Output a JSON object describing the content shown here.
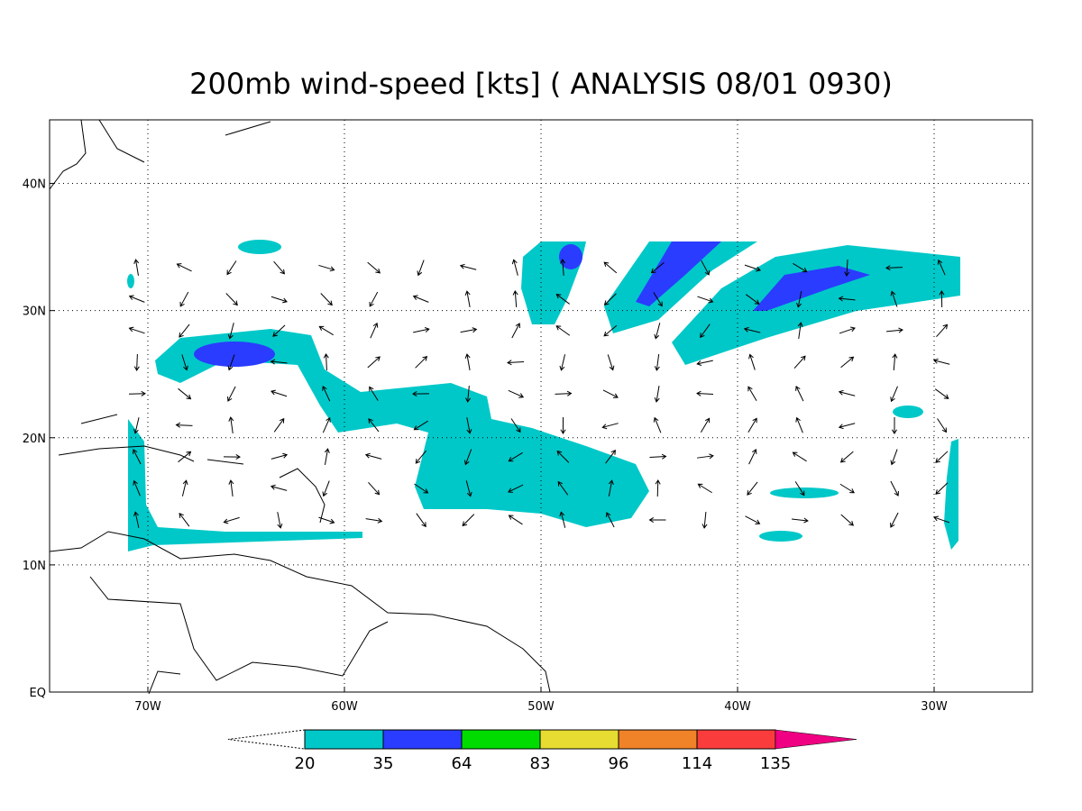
{
  "title": "200mb wind-speed [kts] ( ANALYSIS 08/01 0930)",
  "map": {
    "xlim": [
      -75,
      -25
    ],
    "ylim": [
      0,
      45
    ],
    "xticks": [
      {
        "value": -70,
        "label": "70W"
      },
      {
        "value": -60,
        "label": "60W"
      },
      {
        "value": -50,
        "label": "50W"
      },
      {
        "value": -40,
        "label": "40W"
      },
      {
        "value": -30,
        "label": "30W"
      }
    ],
    "yticks": [
      {
        "value": 0,
        "label": "EQ"
      },
      {
        "value": 10,
        "label": "10N"
      },
      {
        "value": 20,
        "label": "20N"
      },
      {
        "value": 30,
        "label": "30N"
      },
      {
        "value": 40,
        "label": "40N"
      }
    ],
    "grid": true
  },
  "colorbar": {
    "levels": [
      "20",
      "35",
      "64",
      "83",
      "96",
      "114",
      "135"
    ],
    "colors": [
      "#00c8c8",
      "#2a3cff",
      "#00dc00",
      "#e6dc32",
      "#f08228",
      "#fa3c3c",
      "#f00082"
    ]
  }
}
